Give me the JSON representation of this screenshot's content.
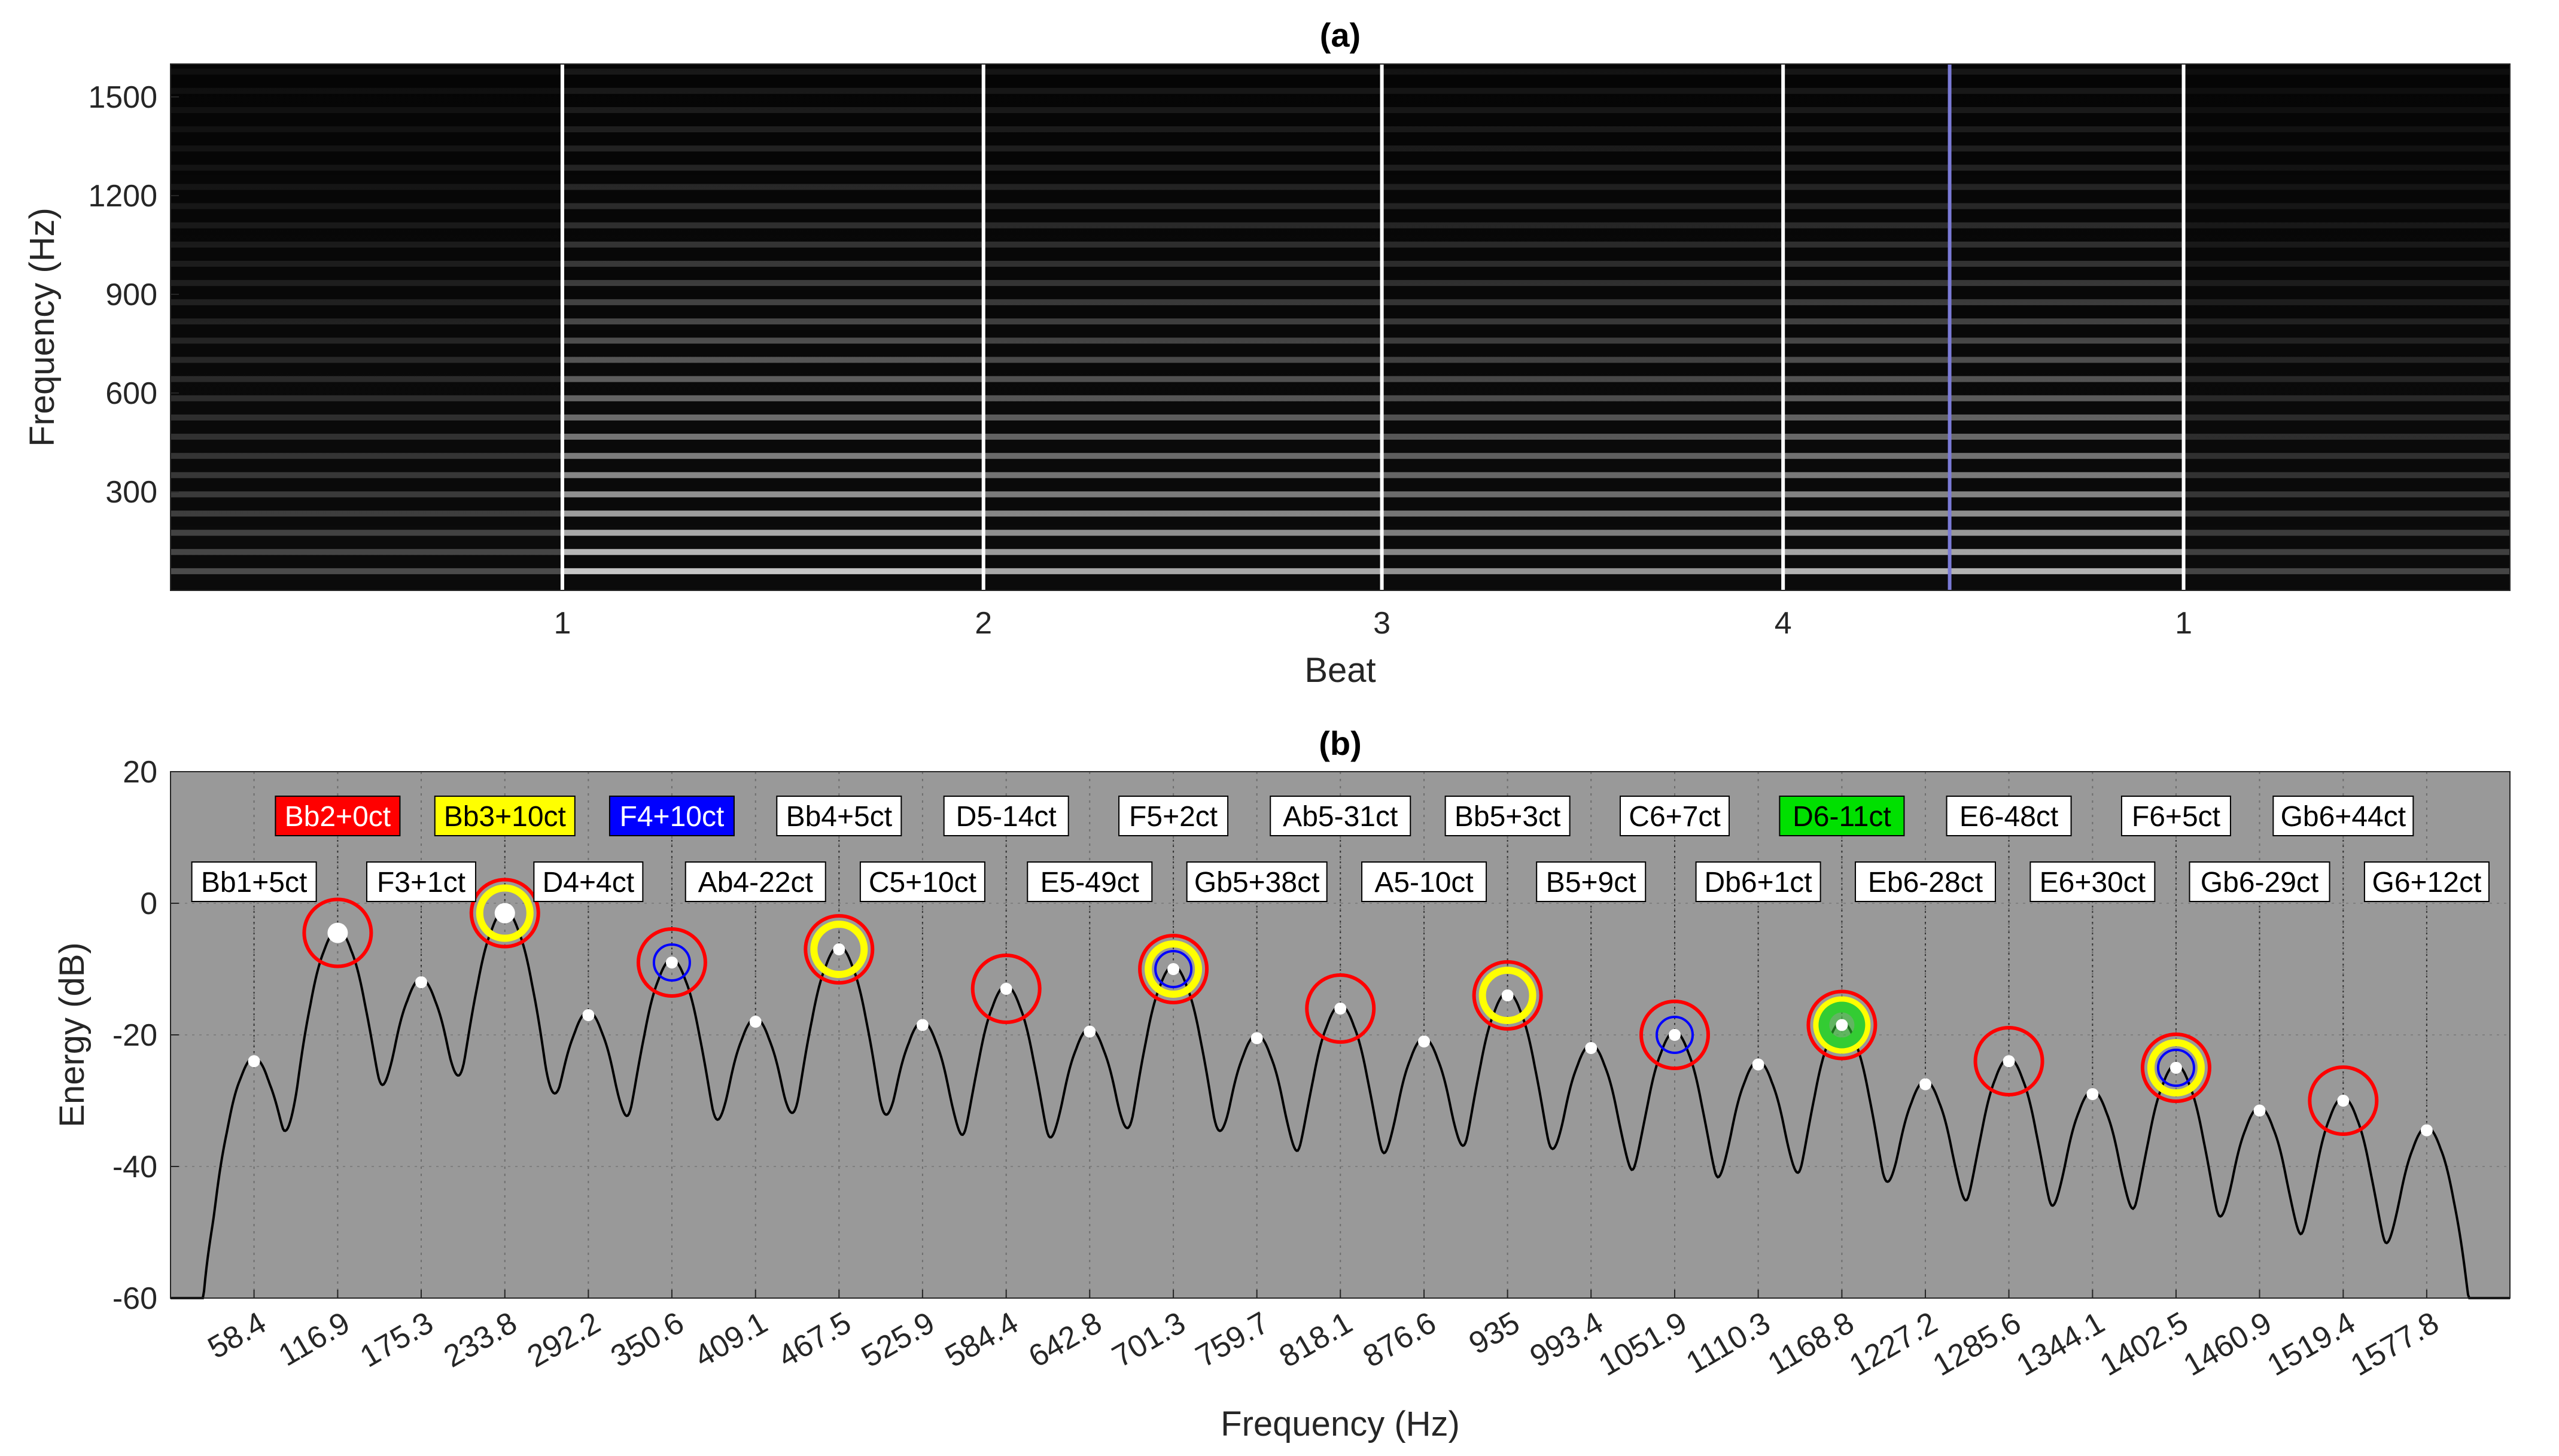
{
  "chart_data": [
    {
      "type": "heatmap",
      "title": "(a)",
      "xlabel": "Beat",
      "ylabel": "Frequency (Hz)",
      "y_ticks": [
        300,
        600,
        900,
        1200,
        1500
      ],
      "ylim": [
        0,
        1600
      ],
      "colormap": "gray",
      "beat_markers": [
        {
          "label": "1",
          "color": "#ffffff"
        },
        {
          "label": "2",
          "color": "#ffffff"
        },
        {
          "label": "3",
          "color": "#ffffff"
        },
        {
          "label": "4",
          "color": "#ffffff"
        },
        {
          "label": "",
          "color": "#7b7bd6"
        },
        {
          "label": "1",
          "color": "#ffffff"
        }
      ],
      "harmonic_spacing_hz": 58.4
    },
    {
      "type": "line",
      "title": "(b)",
      "xlabel": "Frequency (Hz)",
      "ylabel": "Energy (dB)",
      "ylim": [
        -60,
        20
      ],
      "y_ticks": [
        -60,
        -40,
        -20,
        0,
        20
      ],
      "x_ticks": [
        "58.4",
        "116.9",
        "175.3",
        "233.8",
        "292.2",
        "350.6",
        "409.1",
        "467.5",
        "525.9",
        "584.4",
        "642.8",
        "701.3",
        "759.7",
        "818.1",
        "876.6",
        "935",
        "993.4",
        "1051.9",
        "1110.3",
        "1168.8",
        "1227.2",
        "1285.6",
        "1344.1",
        "1402.5",
        "1460.9",
        "1519.4",
        "1577.8"
      ],
      "x_range_hz": [
        0,
        1636
      ],
      "grid": true,
      "background": "#999999",
      "peaks": [
        {
          "freq": 58.4,
          "db": -24,
          "label": "Bb1+5ct",
          "label_bg": "#ffffff",
          "marks": []
        },
        {
          "freq": 116.9,
          "db": -4.5,
          "label": "Bb2+0ct",
          "label_bg": "#ff0000",
          "marks": [
            "red"
          ]
        },
        {
          "freq": 175.3,
          "db": -12,
          "label": "F3+1ct",
          "label_bg": "#ffffff",
          "marks": []
        },
        {
          "freq": 233.8,
          "db": -1.5,
          "label": "Bb3+10ct",
          "label_bg": "#ffff00",
          "marks": [
            "red",
            "yellow"
          ]
        },
        {
          "freq": 292.2,
          "db": -17,
          "label": "D4+4ct",
          "label_bg": "#ffffff",
          "marks": []
        },
        {
          "freq": 350.6,
          "db": -9,
          "label": "F4+10ct",
          "label_bg": "#0000ff",
          "marks": [
            "red",
            "blue"
          ]
        },
        {
          "freq": 409.1,
          "db": -18,
          "label": "Ab4-22ct",
          "label_bg": "#ffffff",
          "marks": []
        },
        {
          "freq": 467.5,
          "db": -7,
          "label": "Bb4+5ct",
          "label_bg": "#ffffff",
          "marks": [
            "red",
            "yellow"
          ]
        },
        {
          "freq": 525.9,
          "db": -18.5,
          "label": "C5+10ct",
          "label_bg": "#ffffff",
          "marks": []
        },
        {
          "freq": 584.4,
          "db": -13,
          "label": "D5-14ct",
          "label_bg": "#ffffff",
          "marks": [
            "red"
          ]
        },
        {
          "freq": 642.8,
          "db": -19.5,
          "label": "E5-49ct",
          "label_bg": "#ffffff",
          "marks": []
        },
        {
          "freq": 701.3,
          "db": -10,
          "label": "F5+2ct",
          "label_bg": "#ffffff",
          "marks": [
            "red",
            "yellow",
            "blue"
          ]
        },
        {
          "freq": 759.7,
          "db": -20.5,
          "label": "Gb5+38ct",
          "label_bg": "#ffffff",
          "marks": []
        },
        {
          "freq": 818.1,
          "db": -16,
          "label": "Ab5-31ct",
          "label_bg": "#ffffff",
          "marks": [
            "red"
          ]
        },
        {
          "freq": 876.6,
          "db": -21,
          "label": "A5-10ct",
          "label_bg": "#ffffff",
          "marks": []
        },
        {
          "freq": 935,
          "db": -14,
          "label": "Bb5+3ct",
          "label_bg": "#ffffff",
          "marks": [
            "red",
            "yellow"
          ]
        },
        {
          "freq": 993.4,
          "db": -22,
          "label": "B5+9ct",
          "label_bg": "#ffffff",
          "marks": []
        },
        {
          "freq": 1051.9,
          "db": -20,
          "label": "C6+7ct",
          "label_bg": "#ffffff",
          "marks": [
            "red",
            "blue"
          ]
        },
        {
          "freq": 1110.3,
          "db": -24.5,
          "label": "Db6+1ct",
          "label_bg": "#ffffff",
          "marks": []
        },
        {
          "freq": 1168.8,
          "db": -18.5,
          "label": "D6-11ct",
          "label_bg": "#00e000",
          "marks": [
            "red",
            "yellow",
            "green"
          ]
        },
        {
          "freq": 1227.2,
          "db": -27.5,
          "label": "Eb6-28ct",
          "label_bg": "#ffffff",
          "marks": []
        },
        {
          "freq": 1285.6,
          "db": -24,
          "label": "E6-48ct",
          "label_bg": "#ffffff",
          "marks": [
            "red"
          ]
        },
        {
          "freq": 1344.1,
          "db": -29,
          "label": "E6+30ct",
          "label_bg": "#ffffff",
          "marks": []
        },
        {
          "freq": 1402.5,
          "db": -25,
          "label": "F6+5ct",
          "label_bg": "#ffffff",
          "marks": [
            "red",
            "yellow",
            "blue"
          ]
        },
        {
          "freq": 1460.9,
          "db": -31.5,
          "label": "Gb6-29ct",
          "label_bg": "#ffffff",
          "marks": []
        },
        {
          "freq": 1519.4,
          "db": -30,
          "label": "Gb6+44ct",
          "label_bg": "#ffffff",
          "marks": [
            "red"
          ]
        },
        {
          "freq": 1577.8,
          "db": -34.5,
          "label": "G6+12ct",
          "label_bg": "#ffffff",
          "marks": []
        }
      ]
    }
  ]
}
